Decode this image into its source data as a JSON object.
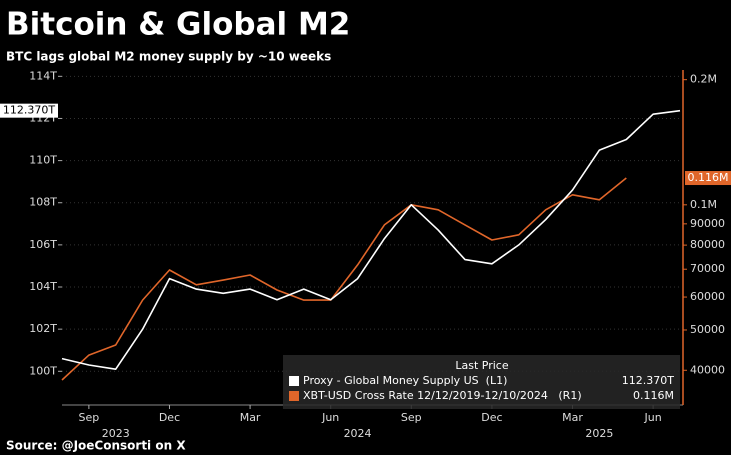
{
  "chart_data": {
    "type": "line",
    "title": "Bitcoin & Global M2",
    "subtitle": "BTC lags global M2 money supply by ~10 weeks",
    "source": "Source: @JoeConsorti on X",
    "legend_title": "Last Price",
    "x": [
      "2023-08",
      "2023-09",
      "2023-10",
      "2023-11",
      "2023-12",
      "2024-01",
      "2024-02",
      "2024-03",
      "2024-04",
      "2024-05",
      "2024-06",
      "2024-07",
      "2024-08",
      "2024-09",
      "2024-10",
      "2024-11",
      "2024-12",
      "2025-01",
      "2025-02",
      "2025-03",
      "2025-04",
      "2025-05",
      "2025-06",
      "2025-07"
    ],
    "xlim": [
      "2023-08",
      "2025-07"
    ],
    "xticks": [
      {
        "value": "2023-09",
        "label": "Sep"
      },
      {
        "value": "2023-12",
        "label": "Dec"
      },
      {
        "value": "2024-03",
        "label": "Mar"
      },
      {
        "value": "2024-06",
        "label": "Jun"
      },
      {
        "value": "2024-09",
        "label": "Sep"
      },
      {
        "value": "2024-12",
        "label": "Dec"
      },
      {
        "value": "2025-03",
        "label": "Mar"
      },
      {
        "value": "2025-06",
        "label": "Jun"
      }
    ],
    "year_labels": [
      {
        "value": "2023-10",
        "label": "2023"
      },
      {
        "value": "2024-07",
        "label": "2024"
      },
      {
        "value": "2025-04",
        "label": "2025"
      }
    ],
    "ylim": [
      98.4,
      114.3
    ],
    "yticks": [
      {
        "value": 100,
        "label": "100T"
      },
      {
        "value": 102,
        "label": "102T"
      },
      {
        "value": 104,
        "label": "104T"
      },
      {
        "value": 106,
        "label": "106T"
      },
      {
        "value": 108,
        "label": "108T"
      },
      {
        "value": 110,
        "label": "110T"
      },
      {
        "value": 112,
        "label": "112T"
      },
      {
        "value": 114,
        "label": "114T"
      }
    ],
    "y2lim": [
      33000,
      211000
    ],
    "y2log": true,
    "y2ticks": [
      {
        "value": 200000,
        "label": "0.2M"
      },
      {
        "value": 100000,
        "label": "0.1M"
      },
      90000,
      80000,
      70000,
      60000,
      50000,
      40000
    ],
    "y2color": "#e0662a",
    "grid": true,
    "series": [
      {
        "name": "Proxy - Global Money Supply US  (L1)",
        "color": "#ffffff",
        "values": [
          100.6,
          100.3,
          100.1,
          102.0,
          104.4,
          103.9,
          103.7,
          103.9,
          103.4,
          103.9,
          103.4,
          104.4,
          106.3,
          107.9,
          106.7,
          105.3,
          105.1,
          106.0,
          107.2,
          108.6,
          110.5,
          111.0,
          112.2,
          112.37
        ],
        "value_labels": [
          null,
          null,
          null,
          null,
          null,
          null,
          null,
          null,
          null,
          null,
          null,
          null,
          null,
          null,
          null,
          null,
          null,
          null,
          null,
          null,
          null,
          null,
          null,
          "112.370T"
        ]
      },
      {
        "name": "XBT-USD Cross Rate 12/12/2019-12/10/2024   (R1)",
        "color": "#e0662a",
        "axis": "y2",
        "values": [
          37900,
          43500,
          46000,
          59000,
          69700,
          64200,
          65900,
          67800,
          62400,
          59000,
          59000,
          71700,
          89500,
          100000,
          97300,
          89500,
          82300,
          84700,
          97300,
          105700,
          102800,
          116000,
          null,
          null
        ],
        "value_labels": [
          null,
          null,
          null,
          null,
          null,
          null,
          null,
          null,
          null,
          null,
          null,
          null,
          null,
          null,
          null,
          null,
          null,
          null,
          null,
          null,
          null,
          "0.116M",
          null,
          null
        ]
      }
    ]
  }
}
